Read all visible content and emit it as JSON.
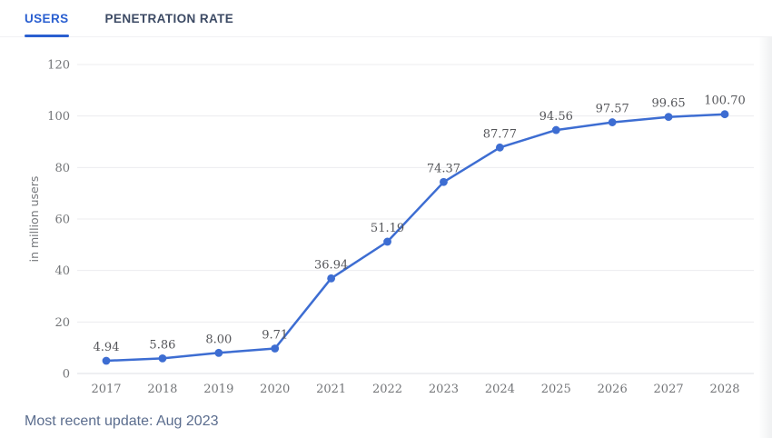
{
  "tabs": {
    "items": [
      {
        "label": "USERS",
        "active": true
      },
      {
        "label": "PENETRATION RATE",
        "active": false
      }
    ]
  },
  "footer": {
    "update_text": "Most recent update: Aug 2023"
  },
  "colors": {
    "accent_blue": "#2a5fd0",
    "line_blue": "#3d6dd2",
    "tab_inactive": "#3c4a64",
    "gridline": "#ececef",
    "axis_line": "#dcdfe4",
    "tick_text": "#737578",
    "data_label": "#55565a",
    "axis_title": "#76787c",
    "footer_text": "#5b6d8e"
  },
  "chart_data": {
    "type": "line",
    "title": "",
    "categories": [
      "2017",
      "2018",
      "2019",
      "2020",
      "2021",
      "2022",
      "2023",
      "2024",
      "2025",
      "2026",
      "2027",
      "2028"
    ],
    "values": [
      4.94,
      5.86,
      8.0,
      9.71,
      36.94,
      51.19,
      74.37,
      87.77,
      94.56,
      97.57,
      99.65,
      100.7
    ],
    "value_labels": [
      "4.94",
      "5.86",
      "8.00",
      "9.71",
      "36.94",
      "51.19",
      "74.37",
      "87.77",
      "94.56",
      "97.57",
      "99.65",
      "100.70"
    ],
    "xlabel": "",
    "ylabel": "in million users",
    "ylim": [
      0,
      120
    ],
    "yticks": [
      0,
      20,
      40,
      60,
      80,
      100,
      120
    ],
    "grid": true,
    "legend": "none",
    "marker": "circle"
  }
}
